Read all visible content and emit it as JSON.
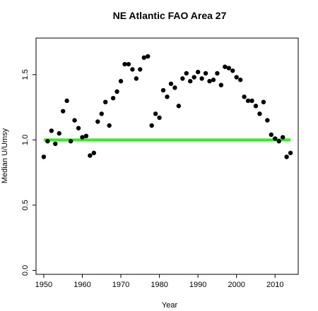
{
  "chart_data": {
    "type": "scatter",
    "title": "NE Atlantic FAO Area 27",
    "xlabel": "Year",
    "ylabel": "Median U/Umsy",
    "xlim": [
      1948,
      2016
    ],
    "ylim": [
      -0.03,
      1.78
    ],
    "x_ticks": [
      1950,
      1960,
      1970,
      1980,
      1990,
      2000,
      2010
    ],
    "y_ticks": [
      0.0,
      0.5,
      1.0,
      1.5
    ],
    "y_tick_labels": [
      "0.0",
      "0.5",
      "1.0",
      "1.5"
    ],
    "grid": false,
    "point_color": "#000000",
    "series": [
      {
        "values": [
          [
            1950,
            0.87
          ],
          [
            1951,
            0.99
          ],
          [
            1952,
            1.07
          ],
          [
            1953,
            0.97
          ],
          [
            1954,
            1.05
          ],
          [
            1955,
            1.22
          ],
          [
            1956,
            1.3
          ],
          [
            1957,
            0.99
          ],
          [
            1958,
            1.15
          ],
          [
            1959,
            1.09
          ],
          [
            1960,
            1.02
          ],
          [
            1961,
            1.03
          ],
          [
            1962,
            0.88
          ],
          [
            1963,
            0.9
          ],
          [
            1964,
            1.14
          ],
          [
            1965,
            1.2
          ],
          [
            1966,
            1.29
          ],
          [
            1967,
            1.11
          ],
          [
            1968,
            1.32
          ],
          [
            1969,
            1.37
          ],
          [
            1970,
            1.45
          ],
          [
            1971,
            1.58
          ],
          [
            1972,
            1.58
          ],
          [
            1973,
            1.54
          ],
          [
            1974,
            1.47
          ],
          [
            1975,
            1.54
          ],
          [
            1976,
            1.63
          ],
          [
            1977,
            1.64
          ],
          [
            1978,
            1.11
          ],
          [
            1979,
            1.2
          ],
          [
            1980,
            1.17
          ],
          [
            1981,
            1.38
          ],
          [
            1982,
            1.33
          ],
          [
            1983,
            1.43
          ],
          [
            1984,
            1.4
          ],
          [
            1985,
            1.26
          ],
          [
            1986,
            1.47
          ],
          [
            1987,
            1.51
          ],
          [
            1988,
            1.45
          ],
          [
            1989,
            1.48
          ],
          [
            1990,
            1.52
          ],
          [
            1991,
            1.47
          ],
          [
            1992,
            1.51
          ],
          [
            1993,
            1.45
          ],
          [
            1994,
            1.46
          ],
          [
            1995,
            1.51
          ],
          [
            1996,
            1.42
          ],
          [
            1997,
            1.56
          ],
          [
            1998,
            1.55
          ],
          [
            1999,
            1.53
          ],
          [
            2000,
            1.48
          ],
          [
            2001,
            1.46
          ],
          [
            2002,
            1.33
          ],
          [
            2003,
            1.3
          ],
          [
            2004,
            1.3
          ],
          [
            2005,
            1.26
          ],
          [
            2006,
            1.2
          ],
          [
            2007,
            1.29
          ],
          [
            2008,
            1.15
          ],
          [
            2009,
            1.04
          ],
          [
            2010,
            1.01
          ],
          [
            2011,
            0.99
          ],
          [
            2012,
            1.02
          ],
          [
            2013,
            0.87
          ],
          [
            2014,
            0.9
          ]
        ]
      }
    ],
    "reference_line": {
      "y": 1.0,
      "x_from": 1950,
      "x_to": 2014,
      "color": "#33ee22"
    }
  }
}
